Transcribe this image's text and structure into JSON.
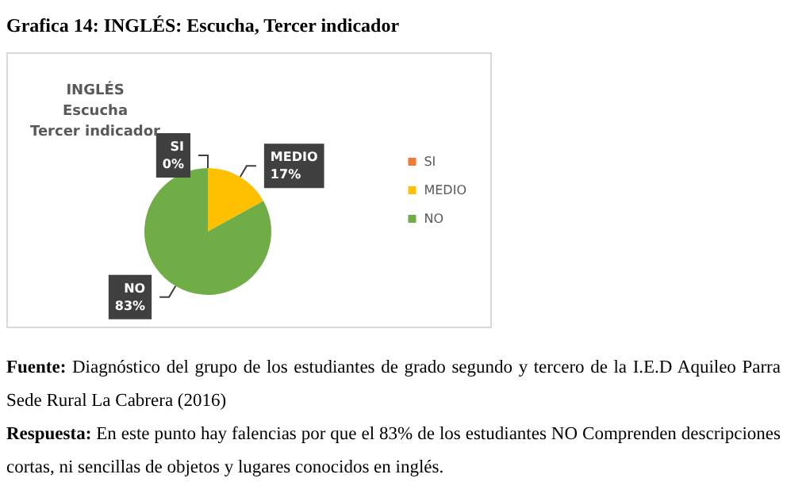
{
  "chart_data": {
    "type": "pie",
    "title": "Grafica 14: INGLÉS: Escucha, Tercer indicador",
    "subtitle": "INGLÉS\nEscucha\nTercer indicador",
    "categories": [
      "SI",
      "MEDIO",
      "NO"
    ],
    "values": [
      0,
      17,
      83
    ],
    "colors": [
      "#ed7d31",
      "#ffc000",
      "#70ad47"
    ],
    "value_labels": [
      "0%",
      "17%",
      "83%"
    ],
    "legend": "right",
    "annotations": [
      "Fuente: Diagnóstico del grupo de los estudiantes de grado segundo y tercero de la I.E.D Aquileo Parra Sede Rural La Cabrera (2016)",
      "Respuesta: En este punto hay falencias por que el 83% de los estudiantes NO Comprenden descripciones cortas, ni sencillas de objetos y lugares conocidos en inglés."
    ]
  }
}
